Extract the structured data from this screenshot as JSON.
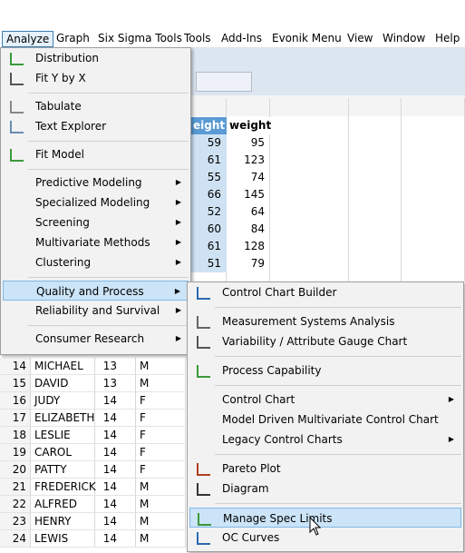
{
  "menu_bar": [
    "Analyze",
    "Graph",
    "Six Sigma Tools",
    "Tools",
    "Add-Ins",
    "Evonik Menu",
    "View",
    "Window",
    "Help"
  ],
  "table": {
    "columns": [
      "eight",
      "weight"
    ],
    "rows": [
      [
        59,
        95
      ],
      [
        61,
        123
      ],
      [
        55,
        74
      ],
      [
        66,
        145
      ],
      [
        52,
        64
      ],
      [
        60,
        84
      ],
      [
        61,
        128
      ],
      [
        51,
        79
      ]
    ]
  },
  "lower_rows": [
    [
      14,
      "MICHAEL",
      13,
      "M"
    ],
    [
      15,
      "DAVID",
      13,
      "M"
    ],
    [
      16,
      "JUDY",
      14,
      "F"
    ],
    [
      17,
      "ELIZABETH",
      14,
      "F"
    ],
    [
      18,
      "LESLIE",
      14,
      "F"
    ],
    [
      19,
      "CAROL",
      14,
      "F"
    ],
    [
      20,
      "PATTY",
      14,
      "F"
    ],
    [
      21,
      "FREDERICK",
      14,
      "M"
    ],
    [
      22,
      "ALFRED",
      14,
      "M"
    ],
    [
      23,
      "HENRY",
      14,
      "M"
    ],
    [
      24,
      "LEWIS",
      14,
      "M"
    ]
  ],
  "analyze_menu": {
    "groups": [
      [
        {
          "label": "Distribution",
          "submenu": false
        },
        {
          "label": "Fit Y by X",
          "submenu": false
        }
      ],
      [
        {
          "label": "Tabulate",
          "submenu": false
        },
        {
          "label": "Text Explorer",
          "submenu": false
        }
      ],
      [
        {
          "label": "Fit Model",
          "submenu": false
        }
      ],
      [
        {
          "label": "Predictive Modeling",
          "submenu": true
        },
        {
          "label": "Specialized Modeling",
          "submenu": true
        },
        {
          "label": "Screening",
          "submenu": true
        },
        {
          "label": "Multivariate Methods",
          "submenu": true
        },
        {
          "label": "Clustering",
          "submenu": true
        }
      ],
      [
        {
          "label": "Quality and Process",
          "submenu": true,
          "highlighted": true
        },
        {
          "label": "Reliability and Survival",
          "submenu": true
        }
      ],
      [
        {
          "label": "Consumer Research",
          "submenu": true
        }
      ]
    ]
  },
  "quality_menu": {
    "groups": [
      [
        {
          "label": "Control Chart Builder",
          "submenu": false
        }
      ],
      [
        {
          "label": "Measurement Systems Analysis",
          "submenu": false
        },
        {
          "label": "Variability / Attribute Gauge Chart",
          "submenu": false
        }
      ],
      [
        {
          "label": "Process Capability",
          "submenu": false
        }
      ],
      [
        {
          "label": "Control Chart",
          "submenu": true
        },
        {
          "label": "Model Driven Multivariate Control Chart",
          "submenu": false
        },
        {
          "label": "Legacy Control Charts",
          "submenu": true
        }
      ],
      [
        {
          "label": "Pareto Plot",
          "submenu": false
        },
        {
          "label": "Diagram",
          "submenu": false
        }
      ],
      [
        {
          "label": "Manage Spec Limits",
          "submenu": false,
          "highlighted": true
        },
        {
          "label": "OC Curves",
          "submenu": false
        }
      ]
    ]
  }
}
